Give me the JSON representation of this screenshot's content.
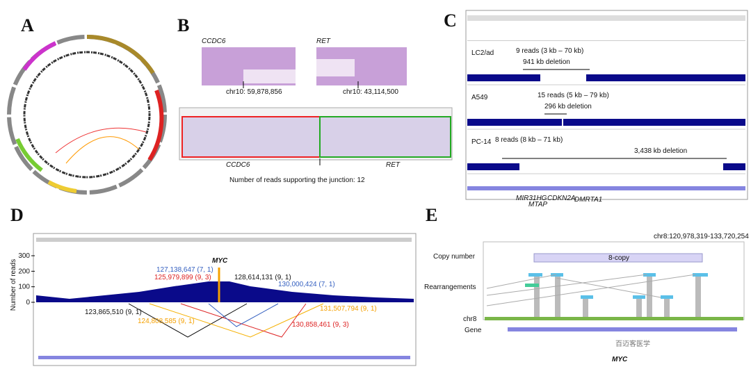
{
  "panels": {
    "a": {
      "label": "A"
    },
    "b": {
      "label": "B",
      "top_left_gene": "CCDC6",
      "top_right_gene": "RET",
      "left_position": "chr10: 59,878,856",
      "right_position": "chr10: 43,114,500",
      "bottom_left_gene": "CCDC6",
      "bottom_right_gene": "RET",
      "caption": "Number of reads supporting the junction: 12"
    },
    "c": {
      "label": "C",
      "samples": [
        {
          "name": "LC2/ad",
          "reads": "9 reads (3 kb – 70 kb)",
          "deletion": "941 kb deletion"
        },
        {
          "name": "A549",
          "reads": "15 reads (5 kb – 79 kb)",
          "deletion": "296 kb deletion"
        },
        {
          "name": "PC-14",
          "reads": "8 reads (8 kb – 71 kb)",
          "deletion": "3,438 kb deletion"
        }
      ],
      "genes": [
        "MIR31HG",
        "MTAP",
        "CDKN2A",
        "DMRTA1"
      ]
    },
    "d": {
      "label": "D",
      "y_label": "Number of reads",
      "yticks": [
        0,
        100,
        200,
        300
      ],
      "gene": "MYC",
      "breakpoints": [
        "127,138,647 (7, 1)",
        "125,979,899 (9, 3)",
        "128,614,131 (9, 1)",
        "130,000,424 (7, 1)",
        "123,865,510 (9, 1)",
        "124,808,585 (9, 1)",
        "131,507,794 (9, 1)",
        "130,858,461 (9, 3)"
      ]
    },
    "e": {
      "label": "E",
      "region": "chr8:120,978,319-133,720,254",
      "copy_number_label": "Copy number",
      "copy_state": "8-copy",
      "rearrangements_label": "Rearrangements",
      "chr_label": "chr8",
      "gene_label": "Gene",
      "gene": "MYC",
      "watermark": "百迈客医学"
    }
  }
}
